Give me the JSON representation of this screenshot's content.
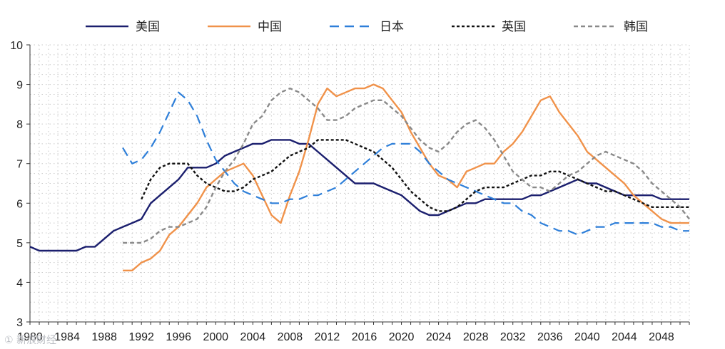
{
  "chart_data": {
    "type": "line",
    "title": "",
    "xlabel": "",
    "ylabel": "",
    "xlim": [
      1980,
      2051
    ],
    "ylim": [
      3,
      10
    ],
    "x_ticks": [
      1980,
      1984,
      1988,
      1992,
      1996,
      2000,
      2004,
      2008,
      2012,
      2016,
      2020,
      2024,
      2028,
      2032,
      2036,
      2040,
      2044,
      2048
    ],
    "y_ticks": [
      3,
      4,
      5,
      6,
      7,
      8,
      9,
      10
    ],
    "grid": "dotted",
    "legend_position": "top",
    "series": [
      {
        "name": "美国",
        "color": "#1b1f6e",
        "dash": "solid",
        "points": [
          [
            1980,
            4.9
          ],
          [
            1981,
            4.8
          ],
          [
            1982,
            4.8
          ],
          [
            1983,
            4.8
          ],
          [
            1984,
            4.8
          ],
          [
            1985,
            4.8
          ],
          [
            1986,
            4.9
          ],
          [
            1987,
            4.9
          ],
          [
            1988,
            5.1
          ],
          [
            1989,
            5.3
          ],
          [
            1990,
            5.4
          ],
          [
            1991,
            5.5
          ],
          [
            1992,
            5.6
          ],
          [
            1993,
            6.0
          ],
          [
            1994,
            6.2
          ],
          [
            1995,
            6.4
          ],
          [
            1996,
            6.6
          ],
          [
            1997,
            6.9
          ],
          [
            1998,
            6.9
          ],
          [
            1999,
            6.9
          ],
          [
            2000,
            7.0
          ],
          [
            2001,
            7.2
          ],
          [
            2002,
            7.3
          ],
          [
            2003,
            7.4
          ],
          [
            2004,
            7.5
          ],
          [
            2005,
            7.5
          ],
          [
            2006,
            7.6
          ],
          [
            2007,
            7.6
          ],
          [
            2008,
            7.6
          ],
          [
            2009,
            7.5
          ],
          [
            2010,
            7.5
          ],
          [
            2011,
            7.3
          ],
          [
            2012,
            7.1
          ],
          [
            2013,
            6.9
          ],
          [
            2014,
            6.7
          ],
          [
            2015,
            6.5
          ],
          [
            2016,
            6.5
          ],
          [
            2017,
            6.5
          ],
          [
            2018,
            6.4
          ],
          [
            2019,
            6.3
          ],
          [
            2020,
            6.2
          ],
          [
            2021,
            6.0
          ],
          [
            2022,
            5.8
          ],
          [
            2023,
            5.7
          ],
          [
            2024,
            5.7
          ],
          [
            2025,
            5.8
          ],
          [
            2026,
            5.9
          ],
          [
            2027,
            6.0
          ],
          [
            2028,
            6.0
          ],
          [
            2029,
            6.1
          ],
          [
            2030,
            6.1
          ],
          [
            2031,
            6.1
          ],
          [
            2032,
            6.1
          ],
          [
            2033,
            6.1
          ],
          [
            2034,
            6.2
          ],
          [
            2035,
            6.2
          ],
          [
            2036,
            6.3
          ],
          [
            2037,
            6.4
          ],
          [
            2038,
            6.5
          ],
          [
            2039,
            6.6
          ],
          [
            2040,
            6.5
          ],
          [
            2041,
            6.5
          ],
          [
            2042,
            6.4
          ],
          [
            2043,
            6.3
          ],
          [
            2044,
            6.2
          ],
          [
            2045,
            6.2
          ],
          [
            2046,
            6.2
          ],
          [
            2047,
            6.2
          ],
          [
            2048,
            6.1
          ],
          [
            2049,
            6.1
          ],
          [
            2050,
            6.1
          ],
          [
            2051,
            6.1
          ]
        ]
      },
      {
        "name": "中国",
        "color": "#f0924a",
        "dash": "solid",
        "points": [
          [
            1990,
            4.3
          ],
          [
            1991,
            4.3
          ],
          [
            1992,
            4.5
          ],
          [
            1993,
            4.6
          ],
          [
            1994,
            4.8
          ],
          [
            1995,
            5.2
          ],
          [
            1996,
            5.4
          ],
          [
            1997,
            5.7
          ],
          [
            1998,
            6.0
          ],
          [
            1999,
            6.4
          ],
          [
            2000,
            6.6
          ],
          [
            2001,
            6.8
          ],
          [
            2002,
            6.9
          ],
          [
            2003,
            7.0
          ],
          [
            2004,
            6.7
          ],
          [
            2005,
            6.2
          ],
          [
            2006,
            5.7
          ],
          [
            2007,
            5.5
          ],
          [
            2008,
            6.2
          ],
          [
            2009,
            6.8
          ],
          [
            2010,
            7.6
          ],
          [
            2011,
            8.5
          ],
          [
            2012,
            8.9
          ],
          [
            2013,
            8.7
          ],
          [
            2014,
            8.8
          ],
          [
            2015,
            8.9
          ],
          [
            2016,
            8.9
          ],
          [
            2017,
            9.0
          ],
          [
            2018,
            8.9
          ],
          [
            2019,
            8.6
          ],
          [
            2020,
            8.3
          ],
          [
            2021,
            7.8
          ],
          [
            2022,
            7.4
          ],
          [
            2023,
            7.0
          ],
          [
            2024,
            6.7
          ],
          [
            2025,
            6.6
          ],
          [
            2026,
            6.4
          ],
          [
            2027,
            6.8
          ],
          [
            2028,
            6.9
          ],
          [
            2029,
            7.0
          ],
          [
            2030,
            7.0
          ],
          [
            2031,
            7.3
          ],
          [
            2032,
            7.5
          ],
          [
            2033,
            7.8
          ],
          [
            2034,
            8.2
          ],
          [
            2035,
            8.6
          ],
          [
            2036,
            8.7
          ],
          [
            2037,
            8.3
          ],
          [
            2038,
            8.0
          ],
          [
            2039,
            7.7
          ],
          [
            2040,
            7.3
          ],
          [
            2041,
            7.1
          ],
          [
            2042,
            6.9
          ],
          [
            2043,
            6.7
          ],
          [
            2044,
            6.5
          ],
          [
            2045,
            6.2
          ],
          [
            2046,
            6.0
          ],
          [
            2047,
            5.8
          ],
          [
            2048,
            5.6
          ],
          [
            2049,
            5.5
          ],
          [
            2050,
            5.5
          ],
          [
            2051,
            5.5
          ]
        ]
      },
      {
        "name": "日本",
        "color": "#2e7fd9",
        "dash": "dash",
        "points": [
          [
            1990,
            7.4
          ],
          [
            1991,
            7.0
          ],
          [
            1992,
            7.1
          ],
          [
            1993,
            7.4
          ],
          [
            1994,
            7.8
          ],
          [
            1995,
            8.3
          ],
          [
            1996,
            8.8
          ],
          [
            1997,
            8.6
          ],
          [
            1998,
            8.2
          ],
          [
            1999,
            7.6
          ],
          [
            2000,
            7.1
          ],
          [
            2001,
            6.8
          ],
          [
            2002,
            6.5
          ],
          [
            2003,
            6.3
          ],
          [
            2004,
            6.2
          ],
          [
            2005,
            6.1
          ],
          [
            2006,
            6.0
          ],
          [
            2007,
            6.0
          ],
          [
            2008,
            6.1
          ],
          [
            2009,
            6.1
          ],
          [
            2010,
            6.2
          ],
          [
            2011,
            6.2
          ],
          [
            2012,
            6.3
          ],
          [
            2013,
            6.4
          ],
          [
            2014,
            6.6
          ],
          [
            2015,
            6.8
          ],
          [
            2016,
            7.0
          ],
          [
            2017,
            7.2
          ],
          [
            2018,
            7.4
          ],
          [
            2019,
            7.5
          ],
          [
            2020,
            7.5
          ],
          [
            2021,
            7.5
          ],
          [
            2022,
            7.3
          ],
          [
            2023,
            7.0
          ],
          [
            2024,
            6.8
          ],
          [
            2025,
            6.6
          ],
          [
            2026,
            6.5
          ],
          [
            2027,
            6.4
          ],
          [
            2028,
            6.3
          ],
          [
            2029,
            6.2
          ],
          [
            2030,
            6.1
          ],
          [
            2031,
            6.0
          ],
          [
            2032,
            6.0
          ],
          [
            2033,
            5.8
          ],
          [
            2034,
            5.7
          ],
          [
            2035,
            5.5
          ],
          [
            2036,
            5.4
          ],
          [
            2037,
            5.3
          ],
          [
            2038,
            5.3
          ],
          [
            2039,
            5.2
          ],
          [
            2040,
            5.3
          ],
          [
            2041,
            5.4
          ],
          [
            2042,
            5.4
          ],
          [
            2043,
            5.5
          ],
          [
            2044,
            5.5
          ],
          [
            2045,
            5.5
          ],
          [
            2046,
            5.5
          ],
          [
            2047,
            5.5
          ],
          [
            2048,
            5.4
          ],
          [
            2049,
            5.4
          ],
          [
            2050,
            5.3
          ],
          [
            2051,
            5.3
          ]
        ]
      },
      {
        "name": "英国",
        "color": "#111111",
        "dash": "dot",
        "points": [
          [
            1992,
            6.1
          ],
          [
            1993,
            6.6
          ],
          [
            1994,
            6.9
          ],
          [
            1995,
            7.0
          ],
          [
            1996,
            7.0
          ],
          [
            1997,
            7.0
          ],
          [
            1998,
            6.7
          ],
          [
            1999,
            6.5
          ],
          [
            2000,
            6.4
          ],
          [
            2001,
            6.3
          ],
          [
            2002,
            6.3
          ],
          [
            2003,
            6.4
          ],
          [
            2004,
            6.6
          ],
          [
            2005,
            6.7
          ],
          [
            2006,
            6.8
          ],
          [
            2007,
            7.0
          ],
          [
            2008,
            7.2
          ],
          [
            2009,
            7.3
          ],
          [
            2010,
            7.4
          ],
          [
            2011,
            7.6
          ],
          [
            2012,
            7.6
          ],
          [
            2013,
            7.6
          ],
          [
            2014,
            7.6
          ],
          [
            2015,
            7.5
          ],
          [
            2016,
            7.4
          ],
          [
            2017,
            7.3
          ],
          [
            2018,
            7.1
          ],
          [
            2019,
            6.9
          ],
          [
            2020,
            6.6
          ],
          [
            2021,
            6.3
          ],
          [
            2022,
            6.1
          ],
          [
            2023,
            5.9
          ],
          [
            2024,
            5.8
          ],
          [
            2025,
            5.8
          ],
          [
            2026,
            5.9
          ],
          [
            2027,
            6.1
          ],
          [
            2028,
            6.3
          ],
          [
            2029,
            6.4
          ],
          [
            2030,
            6.4
          ],
          [
            2031,
            6.4
          ],
          [
            2032,
            6.5
          ],
          [
            2033,
            6.6
          ],
          [
            2034,
            6.7
          ],
          [
            2035,
            6.7
          ],
          [
            2036,
            6.8
          ],
          [
            2037,
            6.8
          ],
          [
            2038,
            6.7
          ],
          [
            2039,
            6.6
          ],
          [
            2040,
            6.5
          ],
          [
            2041,
            6.4
          ],
          [
            2042,
            6.3
          ],
          [
            2043,
            6.3
          ],
          [
            2044,
            6.2
          ],
          [
            2045,
            6.1
          ],
          [
            2046,
            6.0
          ],
          [
            2047,
            5.9
          ],
          [
            2048,
            5.9
          ],
          [
            2049,
            5.9
          ],
          [
            2050,
            5.9
          ],
          [
            2051,
            5.9
          ]
        ]
      },
      {
        "name": "韩国",
        "color": "#8a8a8a",
        "dash": "dash-short",
        "points": [
          [
            1990,
            5.0
          ],
          [
            1991,
            5.0
          ],
          [
            1992,
            5.0
          ],
          [
            1993,
            5.1
          ],
          [
            1994,
            5.3
          ],
          [
            1995,
            5.4
          ],
          [
            1996,
            5.4
          ],
          [
            1997,
            5.5
          ],
          [
            1998,
            5.6
          ],
          [
            1999,
            5.9
          ],
          [
            2000,
            6.4
          ],
          [
            2001,
            6.8
          ],
          [
            2002,
            7.1
          ],
          [
            2003,
            7.5
          ],
          [
            2004,
            8.0
          ],
          [
            2005,
            8.2
          ],
          [
            2006,
            8.6
          ],
          [
            2007,
            8.8
          ],
          [
            2008,
            8.9
          ],
          [
            2009,
            8.8
          ],
          [
            2010,
            8.6
          ],
          [
            2011,
            8.4
          ],
          [
            2012,
            8.1
          ],
          [
            2013,
            8.1
          ],
          [
            2014,
            8.2
          ],
          [
            2015,
            8.4
          ],
          [
            2016,
            8.5
          ],
          [
            2017,
            8.6
          ],
          [
            2018,
            8.6
          ],
          [
            2019,
            8.4
          ],
          [
            2020,
            8.2
          ],
          [
            2021,
            7.9
          ],
          [
            2022,
            7.6
          ],
          [
            2023,
            7.4
          ],
          [
            2024,
            7.3
          ],
          [
            2025,
            7.5
          ],
          [
            2026,
            7.8
          ],
          [
            2027,
            8.0
          ],
          [
            2028,
            8.1
          ],
          [
            2029,
            7.9
          ],
          [
            2030,
            7.6
          ],
          [
            2031,
            7.2
          ],
          [
            2032,
            6.8
          ],
          [
            2033,
            6.6
          ],
          [
            2034,
            6.4
          ],
          [
            2035,
            6.4
          ],
          [
            2036,
            6.3
          ],
          [
            2037,
            6.5
          ],
          [
            2038,
            6.7
          ],
          [
            2039,
            6.8
          ],
          [
            2040,
            7.0
          ],
          [
            2041,
            7.2
          ],
          [
            2042,
            7.3
          ],
          [
            2043,
            7.2
          ],
          [
            2044,
            7.1
          ],
          [
            2045,
            7.0
          ],
          [
            2046,
            6.8
          ],
          [
            2047,
            6.5
          ],
          [
            2048,
            6.3
          ],
          [
            2049,
            6.1
          ],
          [
            2050,
            5.9
          ],
          [
            2051,
            5.6
          ]
        ]
      }
    ]
  },
  "watermark": "① 新浪财经"
}
